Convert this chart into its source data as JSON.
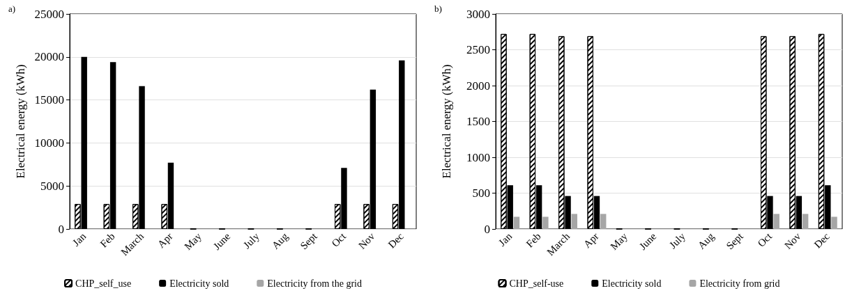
{
  "chart_data": [
    {
      "type": "bar",
      "annotations": [
        "a)"
      ],
      "ylabel": "Electrical energy (kWh)",
      "categories": [
        "Jan",
        "Feb",
        "March",
        "Apr",
        "May",
        "June",
        "July",
        "Aug",
        "Sept",
        "Oct",
        "Nov",
        "Dec"
      ],
      "series": [
        {
          "name": "CHP_self_use",
          "color": "#ffffff",
          "values": [
            2900,
            2900,
            2900,
            2900,
            0,
            0,
            0,
            0,
            0,
            2900,
            2900,
            2900
          ]
        },
        {
          "name": "Electricity sold",
          "color": "#000000",
          "values": [
            20000,
            19400,
            16600,
            7700,
            0,
            0,
            0,
            0,
            0,
            7100,
            16200,
            19600
          ]
        },
        {
          "name": "Electricity from the grid",
          "color": "#a6a6a6",
          "values": [
            0,
            0,
            0,
            null,
            0,
            0,
            0,
            0,
            0,
            null,
            0,
            0
          ]
        }
      ],
      "ylim": [
        0,
        25000
      ],
      "yticks": [
        0,
        5000,
        10000,
        15000,
        20000,
        25000
      ],
      "grid": "y",
      "legend": "bottom"
    },
    {
      "type": "bar",
      "annotations": [
        "b)"
      ],
      "ylabel": "Electrical energy (kWh)",
      "categories": [
        "Jan",
        "Feb",
        "March",
        "Apr",
        "May",
        "June",
        "July",
        "Aug",
        "Sept",
        "Oct",
        "Nov",
        "Dec"
      ],
      "series": [
        {
          "name": "CHP_self-use",
          "color": "#ffffff",
          "values": [
            2720,
            2720,
            2690,
            2690,
            0,
            0,
            0,
            0,
            0,
            2690,
            2690,
            2720
          ]
        },
        {
          "name": "Electricity sold",
          "color": "#000000",
          "values": [
            610,
            610,
            460,
            460,
            0,
            0,
            0,
            0,
            0,
            460,
            460,
            610
          ]
        },
        {
          "name": "Electricity from grid",
          "color": "#a6a6a6",
          "values": [
            170,
            170,
            210,
            210,
            0,
            0,
            0,
            0,
            0,
            210,
            210,
            170
          ]
        }
      ],
      "ylim": [
        0,
        3000
      ],
      "yticks": [
        0,
        500,
        1000,
        1500,
        2000,
        2500,
        3000
      ],
      "grid": "y",
      "legend": "bottom"
    }
  ]
}
